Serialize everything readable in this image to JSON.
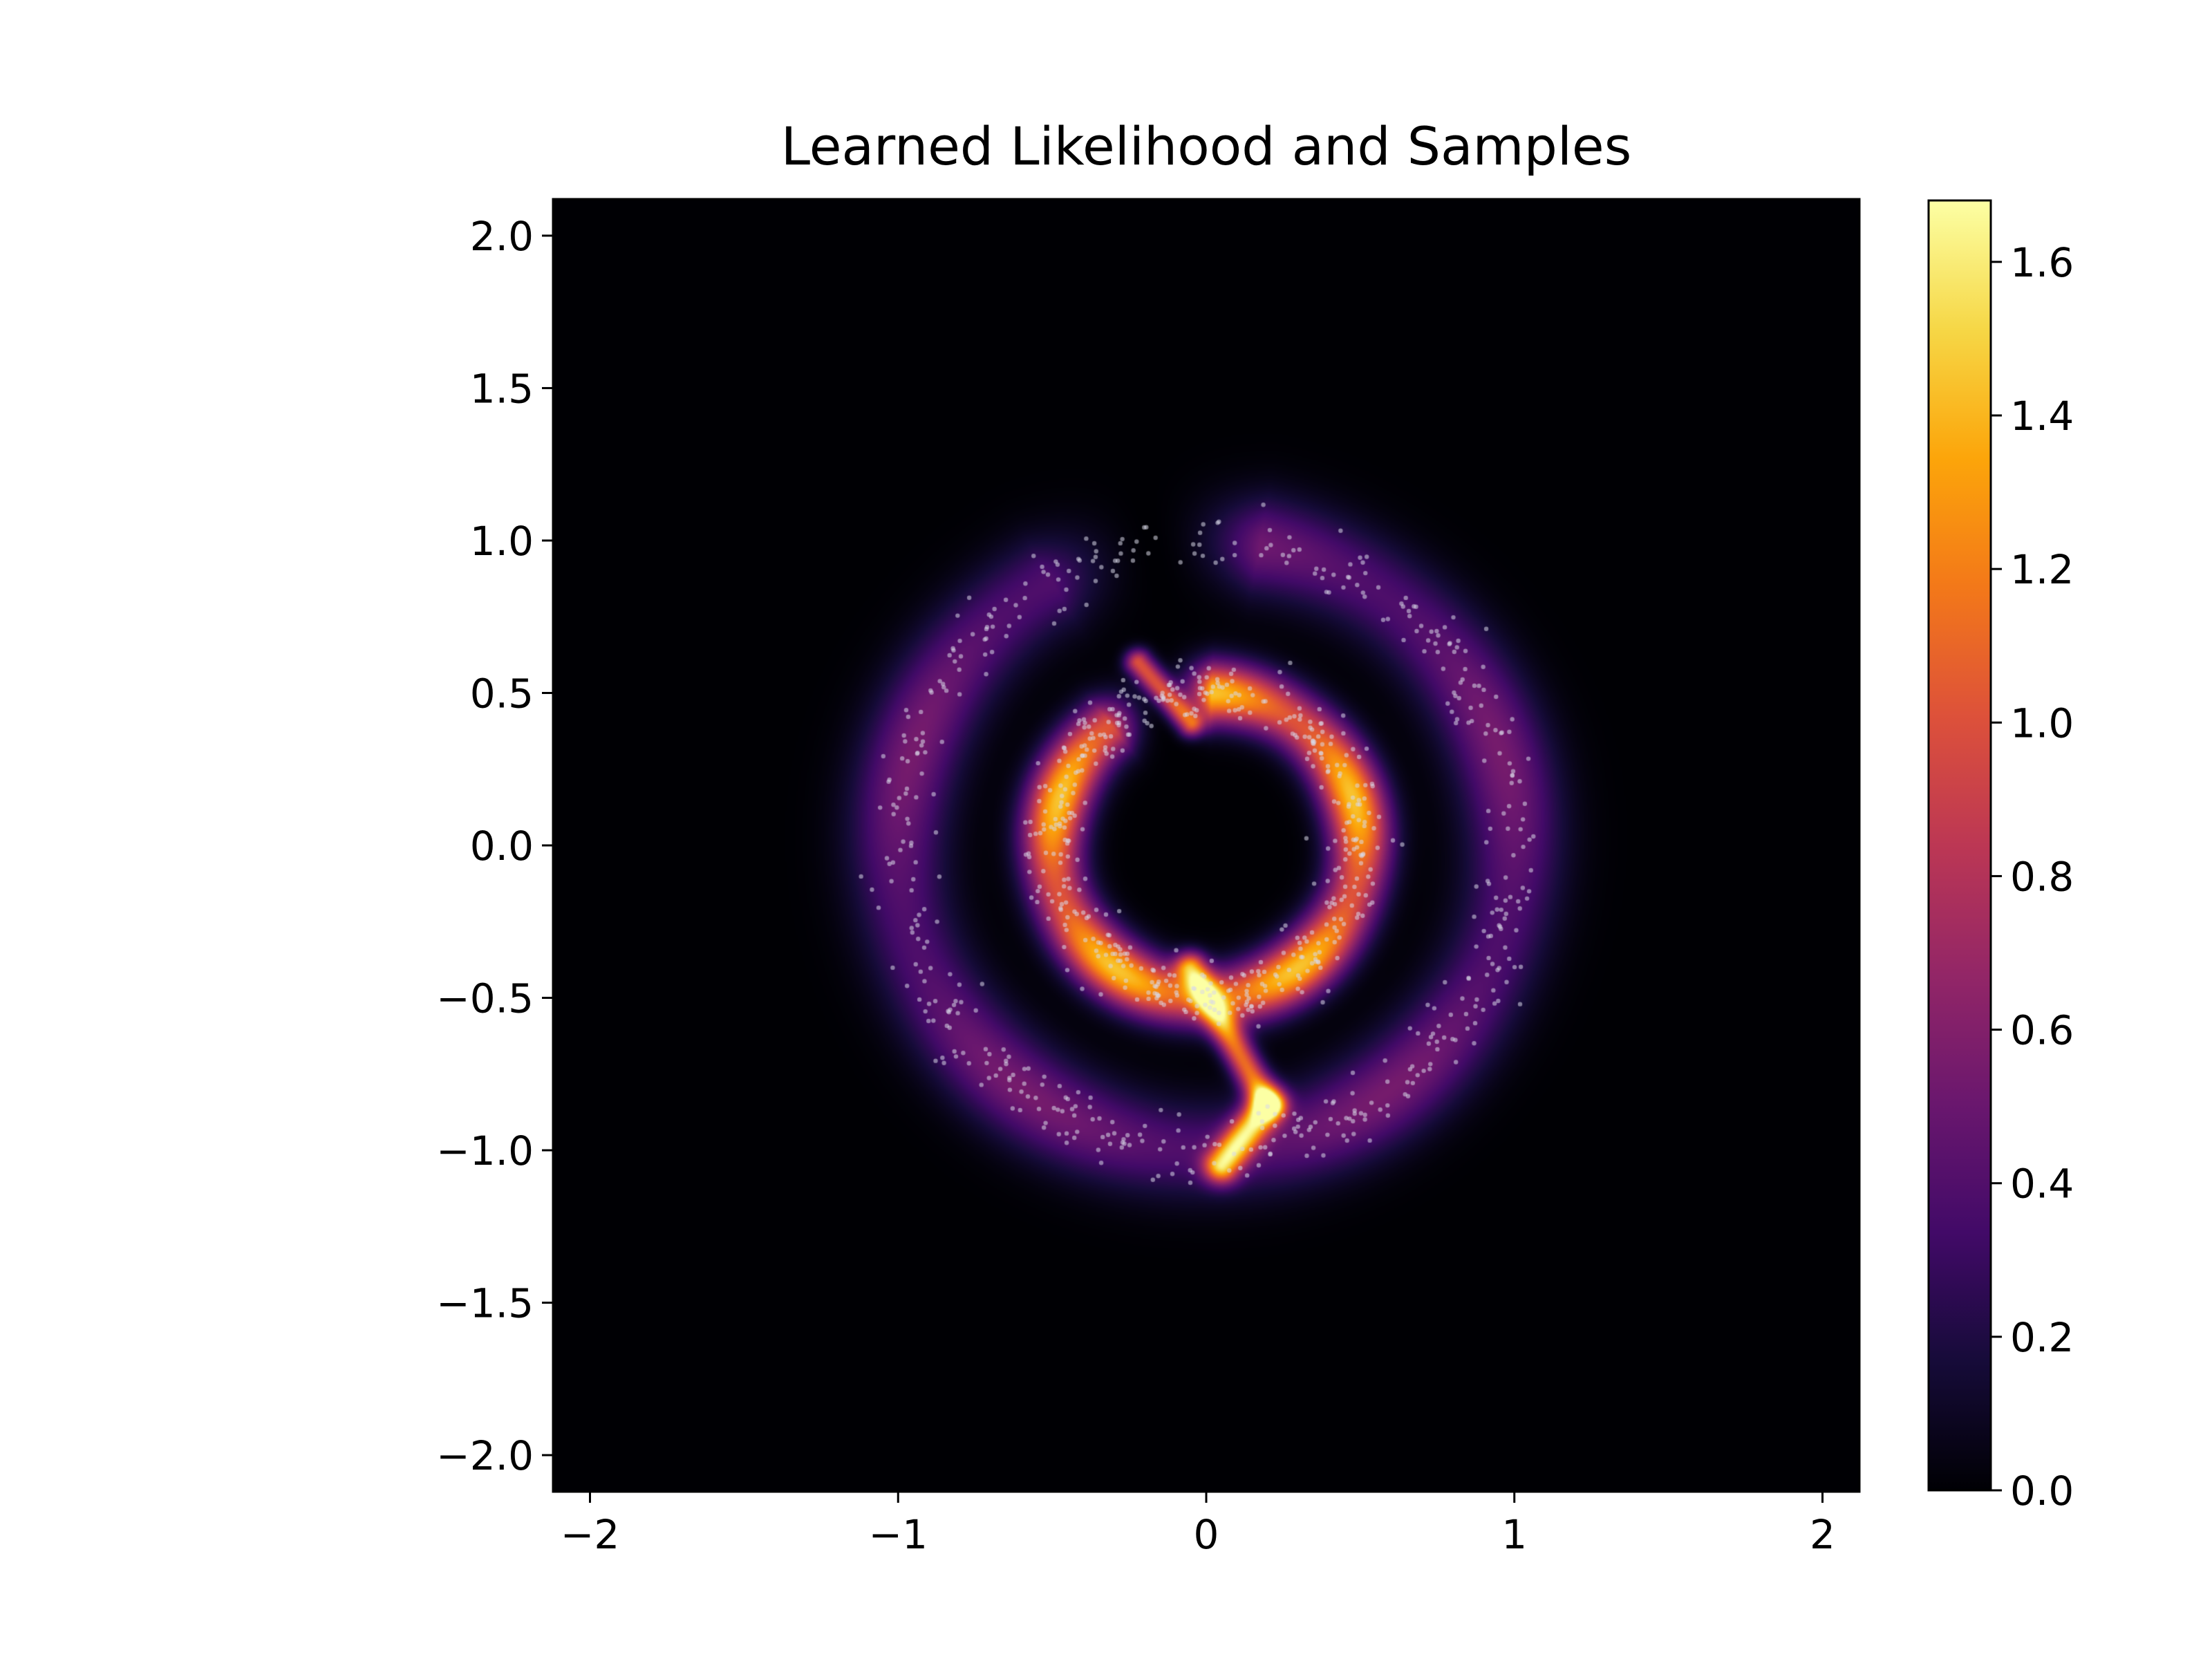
{
  "chart_data": {
    "type": "heatmap",
    "title": "Learned Likelihood and Samples",
    "xlabel": "",
    "ylabel": "",
    "xlim": [
      -2.12,
      2.12
    ],
    "ylim": [
      -2.12,
      2.12
    ],
    "x_ticks": [
      -2,
      -1,
      0,
      1,
      2
    ],
    "x_tick_labels": [
      "−2",
      "−1",
      "0",
      "1",
      "2"
    ],
    "y_ticks": [
      2.0,
      1.5,
      1.0,
      0.5,
      0.0,
      -0.5,
      -1.0,
      -1.5,
      -2.0
    ],
    "y_tick_labels": [
      "2.0",
      "1.5",
      "1.0",
      "0.5",
      "0.0",
      "−0.5",
      "−1.0",
      "−1.5",
      "−2.0"
    ],
    "colorbar": {
      "colormap": "inferno",
      "range": [
        0.0,
        1.68
      ],
      "ticks": [
        0.0,
        0.2,
        0.4,
        0.6,
        0.8,
        1.0,
        1.2,
        1.4,
        1.6
      ],
      "tick_labels": [
        "0.0",
        "0.2",
        "0.4",
        "0.6",
        "0.8",
        "1.0",
        "1.2",
        "1.4",
        "1.6"
      ]
    },
    "density_components": [
      {
        "shape": "ring",
        "center": [
          0.0,
          0.0
        ],
        "radius": 1.0,
        "width": 0.11,
        "peak": 0.55,
        "gap_center_deg": 100,
        "gap_halfwidth_deg": 10
      },
      {
        "shape": "ring",
        "center": [
          0.0,
          0.0
        ],
        "radius": 0.5,
        "width": 0.07,
        "peak": 1.45,
        "gap_center_deg": 108,
        "gap_halfwidth_deg": 10
      },
      {
        "shape": "ridge",
        "from": [
          -0.22,
          0.6
        ],
        "to": [
          -0.05,
          0.4
        ],
        "width": 0.03,
        "peak": 1.0
      },
      {
        "shape": "ridge",
        "from": [
          -0.05,
          -0.4
        ],
        "to": [
          0.2,
          -0.85
        ],
        "width": 0.035,
        "peak": 1.1
      },
      {
        "shape": "ridge",
        "from": [
          0.2,
          -0.85
        ],
        "to": [
          0.05,
          -1.05
        ],
        "width": 0.04,
        "peak": 1.3
      }
    ],
    "samples": {
      "color": "#d8d8e8",
      "count": 1000,
      "distribution": "two concentric rings, radii 1.0 and 0.5"
    }
  }
}
